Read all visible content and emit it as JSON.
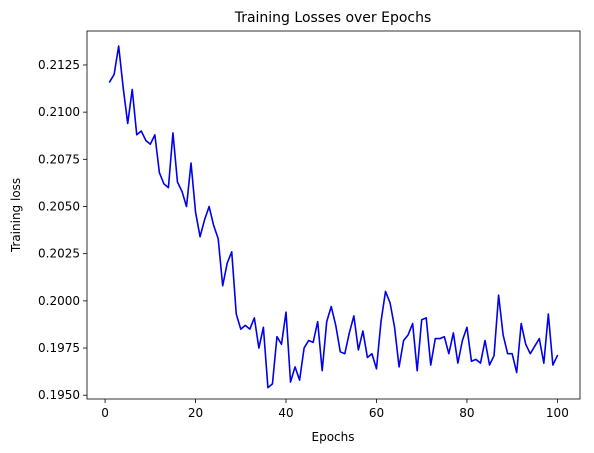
{
  "chart_data": {
    "type": "line",
    "title": "Training Losses over Epochs",
    "xlabel": "Epochs",
    "ylabel": "Training loss",
    "xlim": [
      -4,
      105
    ],
    "ylim": [
      0.1948,
      0.2143
    ],
    "xticks": [
      0,
      20,
      40,
      60,
      80,
      100
    ],
    "yticks": [
      0.195,
      0.1975,
      0.2,
      0.2025,
      0.205,
      0.2075,
      0.21,
      0.2125
    ],
    "xtick_labels": [
      "0",
      "20",
      "40",
      "60",
      "80",
      "100"
    ],
    "ytick_labels": [
      "0.1950",
      "0.1975",
      "0.2000",
      "0.2025",
      "0.2050",
      "0.2075",
      "0.2100",
      "0.2125"
    ],
    "grid": false,
    "line_color": "#0000ee",
    "series": [
      {
        "x": [
          1,
          2,
          3,
          4,
          5,
          6,
          7,
          8,
          9,
          10,
          11,
          12,
          13,
          14,
          15,
          16,
          17,
          18,
          19,
          20,
          21,
          22,
          23,
          24,
          25,
          26,
          27,
          28,
          29,
          30,
          31,
          32,
          33,
          34,
          35,
          36,
          37,
          38,
          39,
          40,
          41,
          42,
          43,
          44,
          45,
          46,
          47,
          48,
          49,
          50,
          51,
          52,
          53,
          54,
          55,
          56,
          57,
          58,
          59,
          60,
          61,
          62,
          63,
          64,
          65,
          66,
          67,
          68,
          69,
          70,
          71,
          72,
          73,
          74,
          75,
          76,
          77,
          78,
          79,
          80,
          81,
          82,
          83,
          84,
          85,
          86,
          87,
          88,
          89,
          90,
          91,
          92,
          93,
          94,
          95,
          96,
          97,
          98,
          99,
          100
        ],
        "values": [
          0.2116,
          0.212,
          0.2135,
          0.2113,
          0.2094,
          0.2112,
          0.2088,
          0.209,
          0.2085,
          0.2083,
          0.2088,
          0.2068,
          0.2062,
          0.206,
          0.2089,
          0.2063,
          0.2058,
          0.205,
          0.2073,
          0.2047,
          0.2034,
          0.2043,
          0.205,
          0.204,
          0.2033,
          0.2008,
          0.202,
          0.2026,
          0.1993,
          0.1985,
          0.1987,
          0.1985,
          0.1991,
          0.1975,
          0.1986,
          0.1954,
          0.1956,
          0.1981,
          0.1977,
          0.1994,
          0.1957,
          0.1965,
          0.1958,
          0.1975,
          0.1979,
          0.1978,
          0.1989,
          0.1963,
          0.1989,
          0.1997,
          0.1987,
          0.1973,
          0.1972,
          0.1983,
          0.1992,
          0.1974,
          0.1984,
          0.197,
          0.1972,
          0.1964,
          0.1989,
          0.2005,
          0.1999,
          0.1986,
          0.1965,
          0.1979,
          0.1982,
          0.1988,
          0.1963,
          0.199,
          0.1991,
          0.1966,
          0.198,
          0.198,
          0.1981,
          0.1972,
          0.1983,
          0.1967,
          0.1979,
          0.1986,
          0.1968,
          0.1969,
          0.1967,
          0.1979,
          0.1966,
          0.1971,
          0.2003,
          0.1982,
          0.1972,
          0.1972,
          0.1962,
          0.1988,
          0.1977,
          0.1972,
          0.1976,
          0.198,
          0.1967,
          0.1993,
          0.1966,
          0.1971
        ]
      }
    ]
  }
}
